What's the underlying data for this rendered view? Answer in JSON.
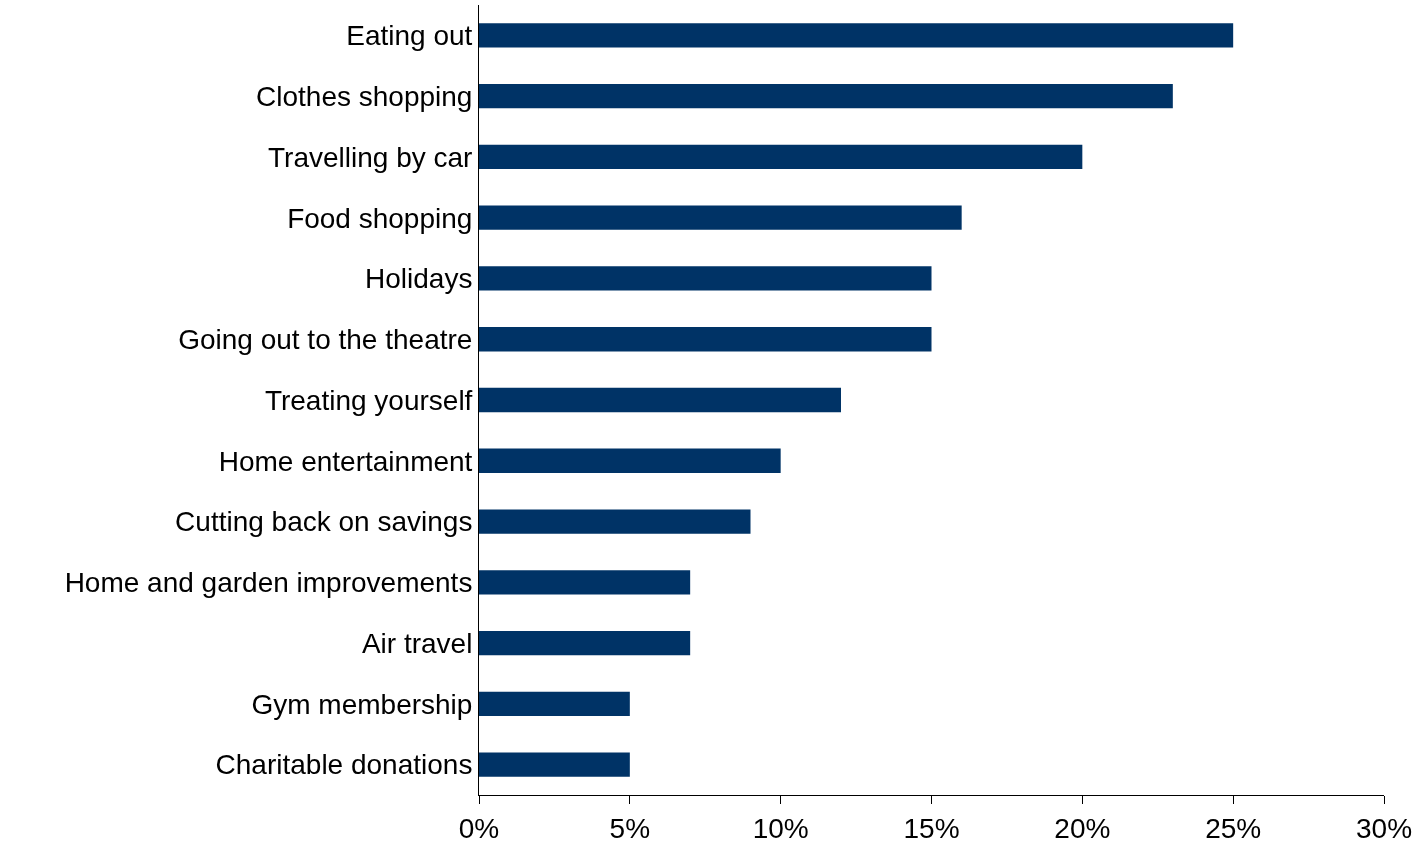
{
  "chart_data": {
    "type": "bar",
    "orientation": "horizontal",
    "categories": [
      "Eating out",
      "Clothes shopping",
      "Travelling by car",
      "Food shopping",
      "Holidays",
      "Going out to the theatre",
      "Treating yourself",
      "Home entertainment",
      "Cutting back on savings",
      "Home and garden improvements",
      "Air travel",
      "Gym membership",
      "Charitable donations"
    ],
    "values": [
      25,
      23,
      20,
      16,
      15,
      15,
      12,
      10,
      9,
      7,
      7,
      5,
      5
    ],
    "color": "#003366",
    "xlim": [
      0,
      30
    ],
    "xticks": [
      {
        "value": 0,
        "label": "0%"
      },
      {
        "value": 5,
        "label": "5%"
      },
      {
        "value": 10,
        "label": "10%"
      },
      {
        "value": 15,
        "label": "15%"
      },
      {
        "value": 20,
        "label": "20%"
      },
      {
        "value": 25,
        "label": "25%"
      },
      {
        "value": 30,
        "label": "30%"
      }
    ],
    "tick_labels": "xy"
  }
}
